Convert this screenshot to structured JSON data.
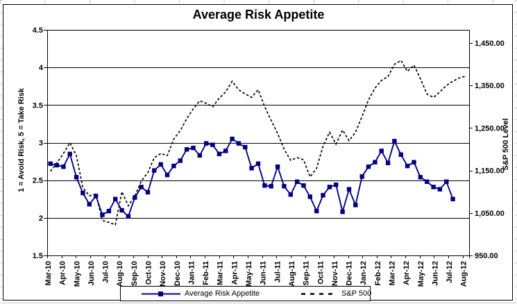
{
  "chart_data": {
    "type": "line",
    "title": "Average Risk Appetite",
    "ylabel_left": "1 = Avoid Risk, 5 = Take Risk",
    "ylabel_right": "S&P 500 Level",
    "y_left_ticks": {
      "labels": [
        "4.5",
        "4",
        "3.5",
        "3",
        "2.5",
        "2",
        "1.5"
      ],
      "values": [
        4.5,
        4,
        3.5,
        3,
        2.5,
        2,
        1.5
      ]
    },
    "y_right_ticks": {
      "labels": [
        "1,450.00",
        "1,350.00",
        "1,250.00",
        "1,150.00",
        "1,050.00",
        "950.00"
      ],
      "values": [
        1450,
        1350,
        1250,
        1150,
        1050,
        950
      ]
    },
    "ylim_left": [
      1.5,
      4.5
    ],
    "ylim_right": [
      950,
      1450
    ],
    "ylim_right_render": [
      950,
      1481
    ],
    "grid": "horizontal",
    "legend_position": "bottom",
    "x_frequency": "biweekly",
    "x_tick_labels": [
      "Mar-10",
      "Apr-10",
      "May-10",
      "Jun-10",
      "Jul-10",
      "Aug-10",
      "Sep-10",
      "Oct-10",
      "Nov-10",
      "Dec-10",
      "Jan-11",
      "Feb-11",
      "Mar-11",
      "Apr-11",
      "May-11",
      "Jun-11",
      "Jul-11",
      "Aug-11",
      "Sep-11",
      "Oct-11",
      "Nov-11",
      "Dec-11",
      "Jan-12",
      "Feb-12",
      "Mar-12",
      "Apr-12",
      "May-12",
      "Jun-12",
      "Jul-12",
      "Aug-12"
    ],
    "series": [
      {
        "name": "Average Risk Appetite",
        "axis": "left",
        "color": "#000080",
        "line": "solid",
        "marker": "square",
        "values": [
          2.72,
          2.7,
          2.68,
          2.85,
          2.54,
          2.33,
          2.18,
          2.29,
          2.04,
          2.09,
          2.25,
          2.1,
          2.02,
          2.27,
          2.41,
          2.34,
          2.63,
          2.71,
          2.57,
          2.69,
          2.76,
          2.91,
          2.93,
          2.83,
          2.99,
          2.97,
          2.85,
          2.89,
          3.05,
          2.99,
          2.94,
          2.66,
          2.72,
          2.43,
          2.42,
          2.68,
          2.42,
          2.31,
          2.48,
          2.43,
          2.28,
          2.09,
          2.3,
          2.41,
          2.44,
          2.08,
          2.38,
          2.17,
          2.55,
          2.68,
          2.74,
          2.89,
          2.73,
          3.02,
          2.84,
          2.69,
          2.74,
          2.54,
          2.48,
          2.41,
          2.38,
          2.48,
          2.25,
          null,
          null
        ]
      },
      {
        "name": "S&P 500",
        "axis": "right",
        "color": "#000000",
        "line": "dashed",
        "marker": "none",
        "values": [
          1148,
          1168,
          1190,
          1215,
          1185,
          1110,
          1090,
          1095,
          1032,
          1028,
          1022,
          1100,
          1067,
          1090,
          1125,
          1145,
          1180,
          1190,
          1185,
          1224,
          1244,
          1272,
          1295,
          1314,
          1308,
          1300,
          1320,
          1335,
          1360,
          1340,
          1330,
          1322,
          1340,
          1300,
          1268,
          1237,
          1200,
          1174,
          1180,
          1175,
          1135,
          1155,
          1207,
          1240,
          1212,
          1245,
          1220,
          1240,
          1277,
          1316,
          1344,
          1362,
          1371,
          1400,
          1409,
          1383,
          1398,
          1366,
          1330,
          1322,
          1335,
          1350,
          1360,
          1368,
          1372
        ]
      }
    ]
  }
}
